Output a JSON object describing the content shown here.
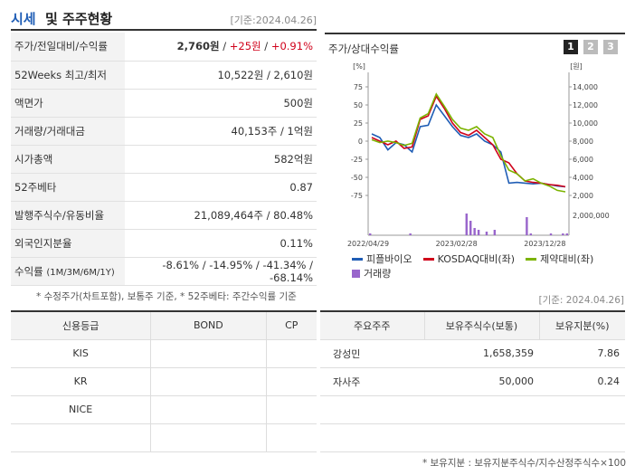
{
  "header": {
    "title_a": "시세",
    "title_b": "및 주주현황",
    "date": "[기준:2024.04.26]"
  },
  "stats": [
    {
      "label": "주가/전일대비/수익률",
      "value_bold": "2,760원",
      "sep1": " / ",
      "value_red1": "+25원",
      "sep2": " / ",
      "value_red2": "+0.91%"
    },
    {
      "label": "52Weeks 최고/최저",
      "value": "10,522원 / 2,610원"
    },
    {
      "label": "액면가",
      "value": "500원"
    },
    {
      "label": "거래량/거래대금",
      "value": "40,153주 / 1억원"
    },
    {
      "label": "시가총액",
      "value": "582억원"
    },
    {
      "label": "52주베타",
      "value": "0.87"
    },
    {
      "label": "발행주식수/유동비율",
      "value": "21,089,464주 / 80.48%"
    },
    {
      "label": "외국인지분율",
      "value": "0.11%"
    },
    {
      "label": "수익률",
      "label_small": "(1M/3M/6M/1Y)",
      "value": "-8.61% / -14.95% / -41.34% / -68.14%"
    }
  ],
  "note_left": "* 수정주가(차트포함), 보통주 기준, * 52주베타: 주간수익률 기준",
  "note_right": "[기준: 2024.04.26]",
  "chart": {
    "title": "주가/상대수익률",
    "tabs": [
      "1",
      "2",
      "3"
    ],
    "active_tab": 0,
    "left_unit": "[%]",
    "right_unit": "[원]",
    "left_ticks": [
      "75",
      "50",
      "25",
      "0",
      "-25",
      "-50",
      "-75"
    ],
    "right_ticks": [
      "14,000",
      "12,000",
      "10,000",
      "8,000",
      "6,000",
      "4,000",
      "2,000"
    ],
    "vol_tick": "2,000,000",
    "x_ticks": [
      "2022/04/29",
      "2023/02/28",
      "2023/12/28"
    ],
    "legend": [
      {
        "name": "피플바이오",
        "color": "#1f5db5",
        "kind": "line"
      },
      {
        "name": "KOSDAQ대비(좌)",
        "color": "#d0021b",
        "kind": "line"
      },
      {
        "name": "제약대비(좌)",
        "color": "#7cb300",
        "kind": "line"
      },
      {
        "name": "거래량",
        "color": "#9966cc",
        "kind": "bar"
      }
    ]
  },
  "chart_data": {
    "type": "line",
    "x_range": [
      "2022/04/29",
      "2024/04/26"
    ],
    "left_axis_range": [
      -75,
      75
    ],
    "right_axis_range": [
      2000,
      14000
    ],
    "series": [
      {
        "name": "피플바이오",
        "values": [
          10,
          5,
          -12,
          -2,
          -5,
          -15,
          20,
          22,
          50,
          35,
          20,
          8,
          5,
          10,
          0,
          -5,
          -15,
          -58,
          -57,
          -58,
          -59,
          -58,
          -60,
          -62,
          -63
        ]
      },
      {
        "name": "KOSDAQ대비(좌)",
        "values": [
          5,
          0,
          -5,
          0,
          -10,
          -8,
          30,
          35,
          62,
          45,
          25,
          12,
          8,
          15,
          5,
          -5,
          -25,
          -30,
          -45,
          -55,
          -57,
          -58,
          -60,
          -61,
          -63
        ]
      },
      {
        "name": "제약대비(좌)",
        "values": [
          2,
          -2,
          0,
          -2,
          -6,
          -3,
          32,
          38,
          65,
          48,
          30,
          18,
          15,
          20,
          10,
          5,
          -20,
          -40,
          -45,
          -55,
          -52,
          -58,
          -62,
          -68,
          -70
        ]
      }
    ],
    "volume": [
      1,
      0,
      0,
      0,
      0,
      0,
      0,
      0,
      0,
      0,
      1,
      0,
      0,
      0,
      0,
      0,
      0,
      0,
      0,
      0,
      0,
      0,
      0,
      0,
      12,
      8,
      4,
      3,
      0,
      2,
      0,
      3,
      0,
      0,
      0,
      0,
      0,
      0,
      0,
      10,
      1,
      0,
      0,
      0,
      0,
      1,
      0,
      0,
      1,
      1
    ]
  },
  "credit": {
    "headers": [
      "신용등급",
      "BOND",
      "CP"
    ],
    "rows": [
      [
        "KIS",
        "",
        ""
      ],
      [
        "KR",
        "",
        ""
      ],
      [
        "NICE",
        "",
        ""
      ],
      [
        "",
        "",
        ""
      ]
    ]
  },
  "holders": {
    "headers": [
      "주요주주",
      "보유주식수(보통)",
      "보유지분(%)"
    ],
    "rows": [
      [
        "강성민",
        "1,658,359",
        "7.86"
      ],
      [
        "자사주",
        "50,000",
        "0.24"
      ],
      [
        "",
        "",
        ""
      ],
      [
        "",
        "",
        ""
      ]
    ]
  },
  "note_bottom": "* 보유지분 : 보유지분주식수/지수산정주식수×100"
}
